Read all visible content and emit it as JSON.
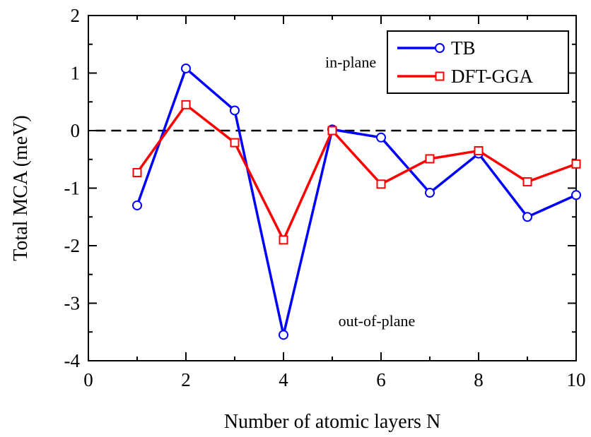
{
  "chart_data": {
    "type": "line",
    "xlabel": "Number of atomic layers N",
    "ylabel": "Total MCA (meV)",
    "xlim": [
      0,
      10
    ],
    "ylim": [
      -4,
      2
    ],
    "xticks": [
      0,
      2,
      4,
      6,
      8,
      10
    ],
    "yticks": [
      -4,
      -3,
      -2,
      -1,
      0,
      1,
      2
    ],
    "xtick_labels": [
      "0",
      "2",
      "4",
      "6",
      "8",
      "10"
    ],
    "ytick_labels": [
      "-4",
      "-3",
      "-2",
      "-1",
      "0",
      "1",
      "2"
    ],
    "grid": false,
    "legend_position": "top-right",
    "reference_line": {
      "y": 0,
      "style": "dashed",
      "color": "#000000"
    },
    "series": [
      {
        "name": "TB",
        "color": "#0000ff",
        "marker": "circle",
        "x": [
          1,
          2,
          3,
          4,
          5,
          6,
          7,
          8,
          9,
          10
        ],
        "y": [
          -1.3,
          1.08,
          0.35,
          -3.55,
          0.02,
          -0.12,
          -1.08,
          -0.4,
          -1.5,
          -1.12
        ]
      },
      {
        "name": "DFT-GGA",
        "color": "#ff0000",
        "marker": "square",
        "x": [
          1,
          2,
          3,
          4,
          5,
          6,
          7,
          8,
          9,
          10
        ],
        "y": [
          -0.73,
          0.45,
          -0.21,
          -1.9,
          0.0,
          -0.93,
          -0.49,
          -0.35,
          -0.89,
          -0.58
        ]
      }
    ],
    "annotations": [
      {
        "text": "in-plane",
        "x": 5.9,
        "y": 1.1
      },
      {
        "text": "out-of-plane",
        "x": 6.7,
        "y": -3.4
      }
    ]
  }
}
